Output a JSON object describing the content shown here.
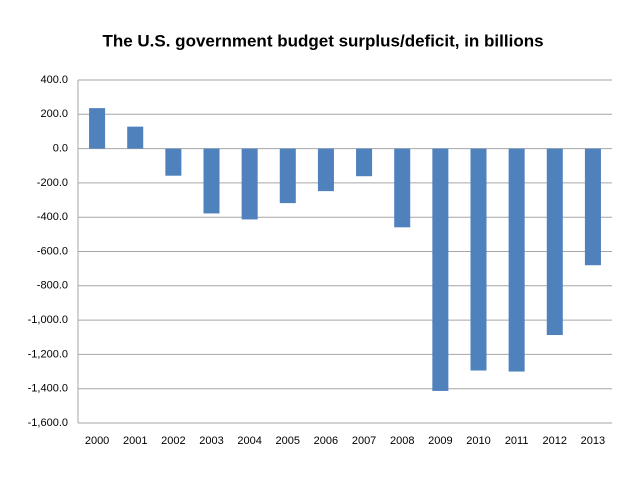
{
  "chart_data": {
    "type": "bar",
    "title": "The U.S. government budget surplus/deficit, in billions",
    "categories": [
      "2000",
      "2001",
      "2002",
      "2003",
      "2004",
      "2005",
      "2006",
      "2007",
      "2008",
      "2009",
      "2010",
      "2011",
      "2012",
      "2013"
    ],
    "values": [
      236,
      128,
      -158,
      -378,
      -413,
      -318,
      -248,
      -161,
      -459,
      -1413,
      -1294,
      -1300,
      -1087,
      -680
    ],
    "color": "#4f81bd",
    "ylim": [
      -1600,
      400
    ],
    "yticks": [
      {
        "value": 400,
        "label": "400.0"
      },
      {
        "value": 200,
        "label": "200.0"
      },
      {
        "value": 0,
        "label": "0.0"
      },
      {
        "value": -200,
        "label": "-200.0"
      },
      {
        "value": -400,
        "label": "-400.0"
      },
      {
        "value": -600,
        "label": "-600.0"
      },
      {
        "value": -800,
        "label": "-800.0"
      },
      {
        "value": -1000,
        "label": "-1,000.0"
      },
      {
        "value": -1200,
        "label": "-1,200.0"
      },
      {
        "value": -1400,
        "label": "-1,400.0"
      },
      {
        "value": -1600,
        "label": "-1,600.0"
      }
    ],
    "grid": true
  }
}
